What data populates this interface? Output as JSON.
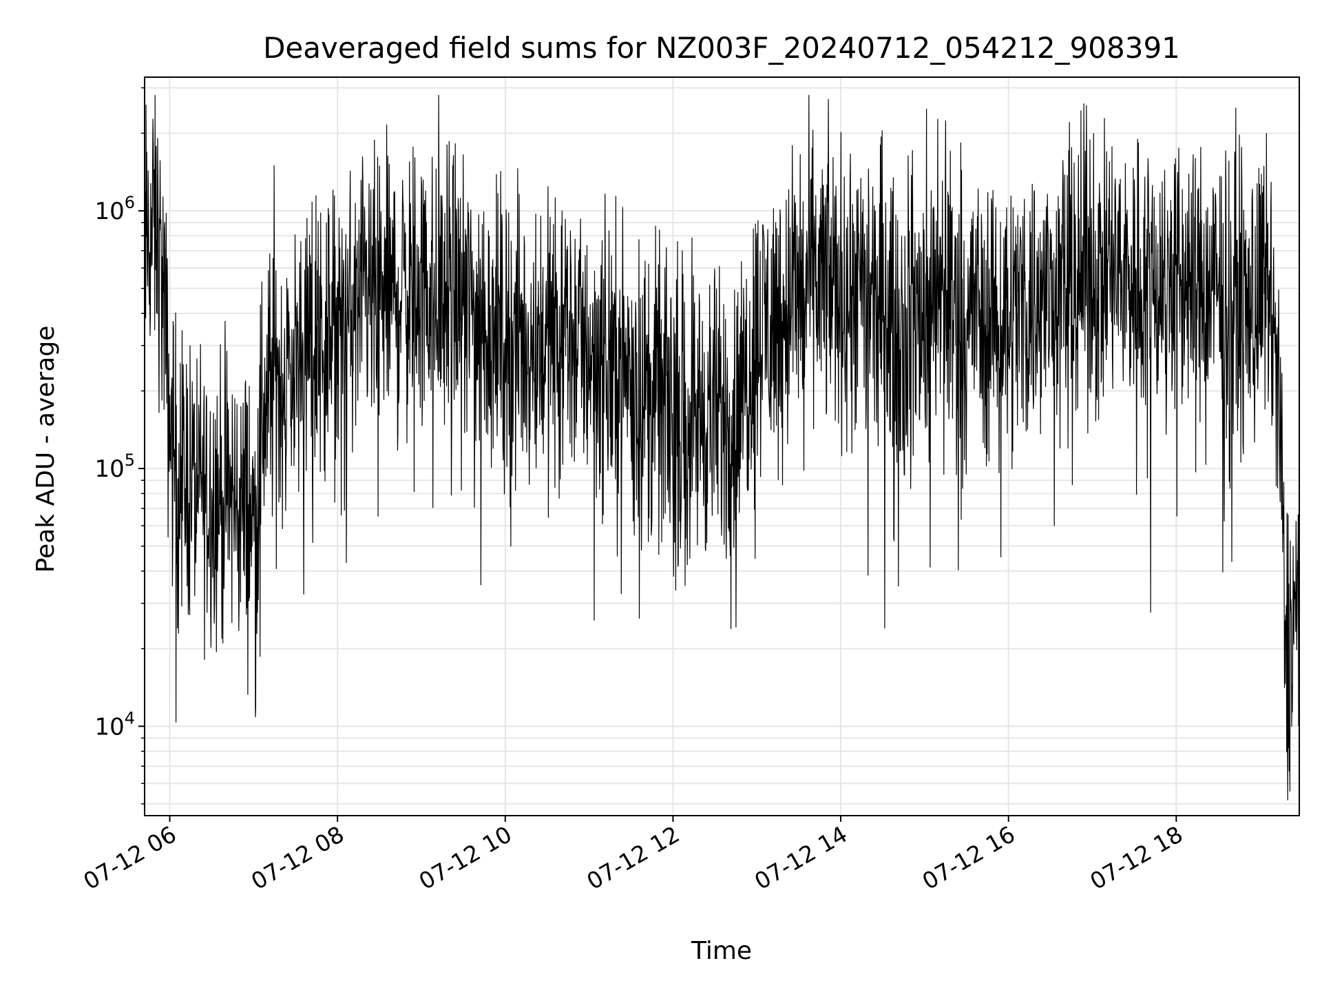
{
  "chart_data": {
    "type": "line",
    "title": "Deaveraged field sums for NZ003F_20240712_054212_908391",
    "xlabel": "Time",
    "ylabel": "Peak ADU - average",
    "x_scale": "time",
    "y_scale": "log",
    "xlim": [
      "2024-07-12 05:42",
      "2024-07-12 19:28"
    ],
    "ylim": [
      4500,
      3300000
    ],
    "x_ticks": [
      {
        "value": "2024-07-12 06:00",
        "label": "07-12 06"
      },
      {
        "value": "2024-07-12 08:00",
        "label": "07-12 08"
      },
      {
        "value": "2024-07-12 10:00",
        "label": "07-12 10"
      },
      {
        "value": "2024-07-12 12:00",
        "label": "07-12 12"
      },
      {
        "value": "2024-07-12 14:00",
        "label": "07-12 14"
      },
      {
        "value": "2024-07-12 16:00",
        "label": "07-12 16"
      },
      {
        "value": "2024-07-12 18:00",
        "label": "07-12 18"
      }
    ],
    "y_ticks": [
      {
        "value": 10000,
        "base": "10",
        "exp": "4"
      },
      {
        "value": 100000,
        "base": "10",
        "exp": "5"
      },
      {
        "value": 1000000,
        "base": "10",
        "exp": "6"
      }
    ],
    "grid": true,
    "line_color": "#000000",
    "series": [
      {
        "x": [
          "2024-07-12 05:42",
          "2024-07-12 05:50",
          "2024-07-12 05:55",
          "2024-07-12 06:00",
          "2024-07-12 06:05",
          "2024-07-12 06:15",
          "2024-07-12 06:30",
          "2024-07-12 06:45",
          "2024-07-12 06:55",
          "2024-07-12 07:02",
          "2024-07-12 07:05",
          "2024-07-12 07:10",
          "2024-07-12 07:20",
          "2024-07-12 07:40",
          "2024-07-12 08:00",
          "2024-07-12 08:20",
          "2024-07-12 08:45",
          "2024-07-12 09:00",
          "2024-07-12 09:30",
          "2024-07-12 09:50",
          "2024-07-12 10:10",
          "2024-07-12 10:30",
          "2024-07-12 10:50",
          "2024-07-12 11:10",
          "2024-07-12 11:30",
          "2024-07-12 11:40",
          "2024-07-12 12:00",
          "2024-07-12 12:30",
          "2024-07-12 12:45",
          "2024-07-12 13:00",
          "2024-07-12 13:20",
          "2024-07-12 13:40",
          "2024-07-12 14:00",
          "2024-07-12 14:30",
          "2024-07-12 14:50",
          "2024-07-12 15:10",
          "2024-07-12 15:30",
          "2024-07-12 16:00",
          "2024-07-12 16:30",
          "2024-07-12 17:00",
          "2024-07-12 17:30",
          "2024-07-12 18:00",
          "2024-07-12 18:30",
          "2024-07-12 18:55",
          "2024-07-12 19:05",
          "2024-07-12 19:10",
          "2024-07-12 19:15",
          "2024-07-12 19:18",
          "2024-07-12 19:28"
        ],
        "y": [
          700000,
          900000,
          500000,
          150000,
          100000,
          90000,
          80000,
          75000,
          70000,
          60000,
          150000,
          200000,
          220000,
          300000,
          350000,
          420000,
          500000,
          480000,
          450000,
          350000,
          300000,
          320000,
          330000,
          260000,
          240000,
          200000,
          170000,
          160000,
          150000,
          350000,
          400000,
          550000,
          500000,
          400000,
          350000,
          500000,
          420000,
          400000,
          480000,
          600000,
          550000,
          550000,
          470000,
          450000,
          480000,
          350000,
          100000,
          20000,
          30000
        ]
      }
    ]
  }
}
